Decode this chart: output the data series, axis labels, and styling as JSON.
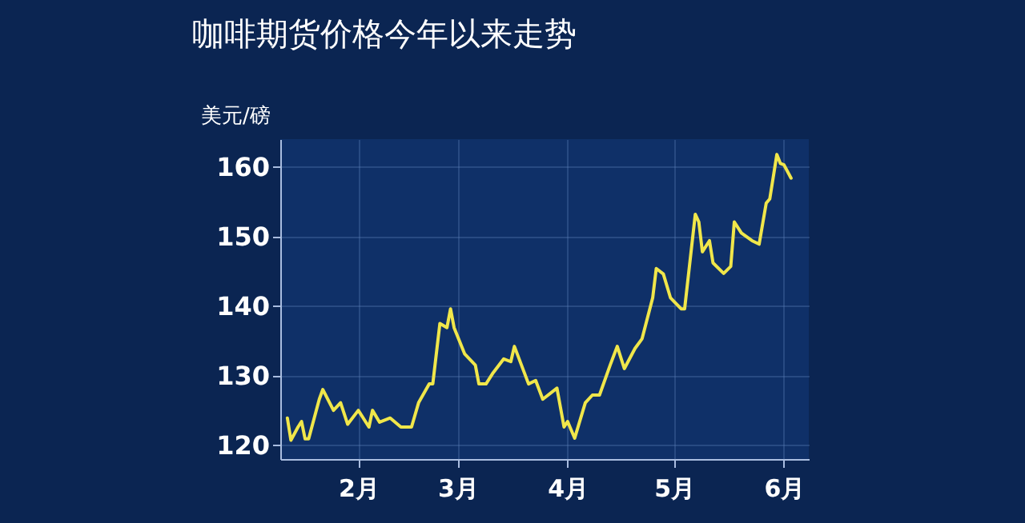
{
  "chart_data": {
    "type": "line",
    "title": "咖啡期货价格今年以来走势",
    "ylabel": "美元/磅",
    "x": [
      "--01-12",
      "--01-13",
      "--01-15",
      "--01-16",
      "--01-17",
      "--01-18",
      "--01-21",
      "--01-22",
      "--01-25",
      "--01-27",
      "--01-29",
      "--02-01",
      "--02-04",
      "--02-05",
      "--02-07",
      "--02-10",
      "--02-13",
      "--02-16",
      "--02-18",
      "--02-21",
      "--02-22",
      "--02-24",
      "--02-26",
      "--02-27",
      "--02-28",
      "--03-03",
      "--03-06",
      "--03-07",
      "--03-09",
      "--03-11",
      "--03-14",
      "--03-16",
      "--03-17",
      "--03-19",
      "--03-21",
      "--03-23",
      "--03-25",
      "--03-29",
      "--03-31",
      "--04-01",
      "--04-03",
      "--04-06",
      "--04-08",
      "--04-10",
      "--04-13",
      "--04-15",
      "--04-17",
      "--04-20",
      "--04-22",
      "--04-25",
      "--04-26",
      "--04-28",
      "--04-30",
      "--05-03",
      "--05-04",
      "--05-07",
      "--05-08",
      "--05-09",
      "--05-11",
      "--05-12",
      "--05-15",
      "--05-17",
      "--05-18",
      "--05-20",
      "--05-23",
      "--05-25",
      "--05-27",
      "--05-28",
      "--05-30",
      "--05-31",
      "--06-01",
      "--06-03"
    ],
    "series": [
      {
        "color": "#f0e64a",
        "values": [
          123.9,
          120.7,
          122.6,
          123.4,
          120.9,
          120.9,
          126.6,
          128,
          125,
          126.1,
          123,
          125,
          122.6,
          125,
          123.3,
          123.9,
          122.6,
          122.6,
          126.1,
          128.8,
          128.8,
          137.5,
          136.9,
          139.6,
          136.9,
          133.1,
          131.5,
          128.8,
          128.8,
          130.4,
          132.4,
          132,
          134.2,
          131.5,
          128.8,
          129.3,
          126.6,
          128.2,
          122.6,
          123.4,
          121,
          126.1,
          127.2,
          127.2,
          131.5,
          134.2,
          131,
          133.9,
          135.3,
          141.2,
          145.4,
          144.6,
          141.2,
          139.6,
          139.6,
          153.2,
          152.1,
          147.8,
          149.4,
          146.2,
          144.7,
          145.7,
          152.1,
          150.5,
          149.4,
          148.9,
          154.8,
          155.4,
          161.8,
          160.5,
          160.3,
          158.4
        ]
      }
    ],
    "xlim": [
      "--01-10",
      "--06-08"
    ],
    "xticks": [
      {
        "value": "--02-01",
        "label": "2月"
      },
      {
        "value": "--03-01",
        "label": "3月"
      },
      {
        "value": "--04-01",
        "label": "4月"
      },
      {
        "value": "--05-01",
        "label": "5月"
      },
      {
        "value": "--06-01",
        "label": "6月"
      }
    ],
    "ylim": [
      118,
      164
    ],
    "yticks": [
      120,
      130,
      140,
      150,
      160
    ],
    "grid": true,
    "marker": "none",
    "line_style": "solid"
  }
}
